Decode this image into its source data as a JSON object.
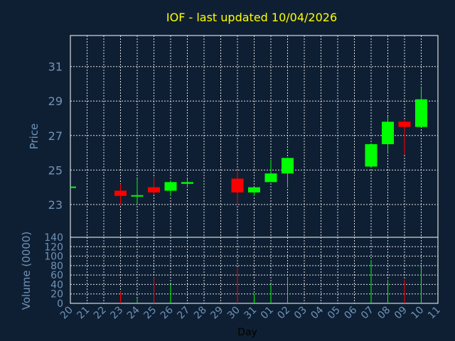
{
  "chart_data": {
    "type": "candlestick",
    "title": "IOF - last updated 10/04/2026",
    "ylabel": "Price",
    "volume_label": "Volume (0000)",
    "xlabel": "Day",
    "ylim": [
      21.1,
      32.8
    ],
    "yticks": [
      23,
      25,
      27,
      29,
      31
    ],
    "volume_ylim": [
      0,
      140
    ],
    "volume_ticks": [
      0,
      20,
      40,
      60,
      80,
      100,
      120,
      140
    ],
    "grid": true,
    "x_ticks": [
      "20",
      "21",
      "22",
      "23",
      "24",
      "25",
      "26",
      "27",
      "28",
      "29",
      "30",
      "31",
      "01",
      "02",
      "03",
      "04",
      "05",
      "06",
      "07",
      "08",
      "09",
      "10",
      "11"
    ],
    "candles": [
      {
        "day": "20",
        "open": 24.0,
        "high": 24.0,
        "low": 24.0,
        "close": 24.0,
        "volume": 0
      },
      {
        "day": "23",
        "open": 23.8,
        "high": 24.2,
        "low": 23.0,
        "close": 23.5,
        "volume": 25
      },
      {
        "day": "24",
        "open": 23.5,
        "high": 24.5,
        "low": 23.0,
        "close": 23.5,
        "volume": 10
      },
      {
        "day": "25",
        "open": 24.0,
        "high": 24.6,
        "low": 23.6,
        "close": 23.7,
        "volume": 55
      },
      {
        "day": "26",
        "open": 23.8,
        "high": 24.4,
        "low": 23.5,
        "close": 24.3,
        "volume": 40
      },
      {
        "day": "27",
        "open": 24.2,
        "high": 24.5,
        "low": 24.0,
        "close": 24.3,
        "volume": 0
      },
      {
        "day": "30",
        "open": 24.5,
        "high": 25.0,
        "low": 23.0,
        "close": 23.7,
        "volume": 75
      },
      {
        "day": "31",
        "open": 23.7,
        "high": 24.0,
        "low": 23.5,
        "close": 24.0,
        "volume": 20
      },
      {
        "day": "01",
        "open": 24.3,
        "high": 25.6,
        "low": 24.3,
        "close": 24.8,
        "volume": 40
      },
      {
        "day": "02",
        "open": 24.8,
        "high": 25.7,
        "low": 24.0,
        "close": 25.7,
        "volume": 55
      },
      {
        "day": "07",
        "open": 25.2,
        "high": 26.5,
        "low": 25.2,
        "close": 26.5,
        "volume": 92
      },
      {
        "day": "08",
        "open": 26.5,
        "high": 28.1,
        "low": 26.0,
        "close": 27.8,
        "volume": 50
      },
      {
        "day": "09",
        "open": 27.8,
        "high": 27.9,
        "low": 25.9,
        "close": 27.5,
        "volume": 50
      },
      {
        "day": "10",
        "open": 27.5,
        "high": 29.8,
        "low": 27.5,
        "close": 29.1,
        "volume": 78
      }
    ],
    "colors": {
      "background": "#0f1f33",
      "up": "#00ff00",
      "down": "#ff0000",
      "title": "#ffff00",
      "axis_text": "#6f93b8"
    }
  }
}
